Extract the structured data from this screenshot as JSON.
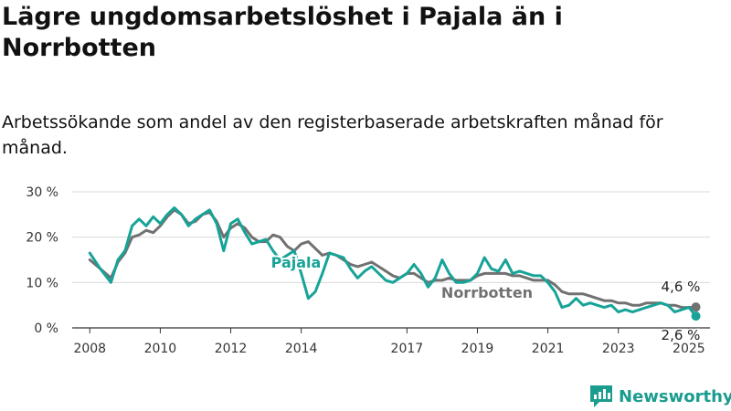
{
  "title": "Lägre ungdomsarbetslöshet i Pajala än i Norrbotten",
  "subtitle": "Arbetssökande som andel av den registerbaserade arbetskraften månad för månad.",
  "brand": {
    "name": "Newsworthy",
    "color": "#1a9c8f"
  },
  "chart_data": {
    "type": "line",
    "title": "Lägre ungdomsarbetslöshet i Pajala än i Norrbotten",
    "subtitle": "Arbetssökande som andel av den registerbaserade arbetskraften månad för månad.",
    "ylim": [
      0,
      30
    ],
    "xlim": [
      2007.5,
      2025.6
    ],
    "yticks": [
      0,
      10,
      20,
      30
    ],
    "ytick_labels": [
      "0 %",
      "10 %",
      "20 %",
      "30 %"
    ],
    "xticks": [
      2008,
      2010,
      2012,
      2014,
      2017,
      2019,
      2021,
      2023,
      2025
    ],
    "xtick_labels": [
      "2008",
      "2010",
      "2012",
      "2014",
      "2017",
      "2019",
      "2021",
      "2023",
      "2025"
    ],
    "grid": true,
    "series": [
      {
        "name": "Pajala",
        "color": "#17a398",
        "label": "Pajala",
        "end_label": "2,6 %",
        "x": [
          2008.0,
          2008.3,
          2008.6,
          2008.8,
          2009.0,
          2009.2,
          2009.4,
          2009.6,
          2009.8,
          2010.0,
          2010.2,
          2010.4,
          2010.6,
          2010.8,
          2011.0,
          2011.2,
          2011.4,
          2011.6,
          2011.8,
          2012.0,
          2012.2,
          2012.4,
          2012.6,
          2012.8,
          2013.0,
          2013.2,
          2013.4,
          2013.6,
          2013.8,
          2014.0,
          2014.2,
          2014.4,
          2014.6,
          2014.8,
          2015.0,
          2015.2,
          2015.4,
          2015.6,
          2015.8,
          2016.0,
          2016.2,
          2016.4,
          2016.6,
          2016.8,
          2017.0,
          2017.2,
          2017.4,
          2017.6,
          2017.8,
          2018.0,
          2018.2,
          2018.4,
          2018.6,
          2018.8,
          2019.0,
          2019.2,
          2019.4,
          2019.6,
          2019.8,
          2020.0,
          2020.2,
          2020.4,
          2020.6,
          2020.8,
          2021.0,
          2021.2,
          2021.4,
          2021.6,
          2021.8,
          2022.0,
          2022.2,
          2022.4,
          2022.6,
          2022.8,
          2023.0,
          2023.2,
          2023.4,
          2023.6,
          2023.8,
          2024.0,
          2024.2,
          2024.4,
          2024.6,
          2024.8,
          2025.0,
          2025.2
        ],
        "values": [
          16.5,
          13.0,
          10.0,
          15.0,
          17.0,
          22.5,
          24.0,
          22.5,
          24.5,
          23.0,
          25.0,
          26.5,
          25.0,
          22.5,
          24.0,
          25.0,
          26.0,
          23.0,
          17.0,
          23.0,
          24.0,
          21.0,
          18.5,
          19.0,
          19.5,
          17.0,
          15.0,
          16.0,
          17.0,
          12.0,
          6.5,
          8.0,
          12.0,
          16.5,
          16.0,
          15.5,
          13.0,
          11.0,
          12.5,
          13.5,
          12.0,
          10.5,
          10.0,
          11.0,
          12.0,
          14.0,
          12.0,
          9.0,
          11.0,
          15.0,
          12.0,
          10.0,
          10.0,
          10.5,
          12.0,
          15.5,
          13.0,
          12.5,
          15.0,
          12.0,
          12.5,
          12.0,
          11.5,
          11.5,
          10.0,
          8.0,
          4.5,
          5.0,
          6.5,
          5.0,
          5.5,
          5.0,
          4.5,
          5.0,
          3.5,
          4.0,
          3.5,
          4.0,
          4.5,
          5.0,
          5.5,
          5.0,
          3.5,
          4.0,
          4.5,
          2.6
        ]
      },
      {
        "name": "Norrbotten",
        "color": "#717171",
        "label": "Norrbotten",
        "end_label": "4,6 %",
        "x": [
          2008.0,
          2008.3,
          2008.6,
          2008.8,
          2009.0,
          2009.2,
          2009.4,
          2009.6,
          2009.8,
          2010.0,
          2010.2,
          2010.4,
          2010.6,
          2010.8,
          2011.0,
          2011.2,
          2011.4,
          2011.6,
          2011.8,
          2012.0,
          2012.2,
          2012.4,
          2012.6,
          2012.8,
          2013.0,
          2013.2,
          2013.4,
          2013.6,
          2013.8,
          2014.0,
          2014.2,
          2014.4,
          2014.6,
          2014.8,
          2015.0,
          2015.2,
          2015.4,
          2015.6,
          2015.8,
          2016.0,
          2016.2,
          2016.4,
          2016.6,
          2016.8,
          2017.0,
          2017.2,
          2017.4,
          2017.6,
          2017.8,
          2018.0,
          2018.2,
          2018.4,
          2018.6,
          2018.8,
          2019.0,
          2019.2,
          2019.4,
          2019.6,
          2019.8,
          2020.0,
          2020.2,
          2020.4,
          2020.6,
          2020.8,
          2021.0,
          2021.2,
          2021.4,
          2021.6,
          2021.8,
          2022.0,
          2022.2,
          2022.4,
          2022.6,
          2022.8,
          2023.0,
          2023.2,
          2023.4,
          2023.6,
          2023.8,
          2024.0,
          2024.2,
          2024.4,
          2024.6,
          2024.8,
          2025.0,
          2025.2
        ],
        "values": [
          15.0,
          13.0,
          11.0,
          14.5,
          16.5,
          20.0,
          20.5,
          21.5,
          21.0,
          22.5,
          24.5,
          26.0,
          25.0,
          23.0,
          23.5,
          25.0,
          25.5,
          23.5,
          20.0,
          22.0,
          23.0,
          22.0,
          20.0,
          19.0,
          19.0,
          20.5,
          20.0,
          18.0,
          17.0,
          18.5,
          19.0,
          17.5,
          16.0,
          16.5,
          16.0,
          15.0,
          14.0,
          13.5,
          14.0,
          14.5,
          13.5,
          12.5,
          11.5,
          11.0,
          12.0,
          12.0,
          11.0,
          10.0,
          10.5,
          10.5,
          11.0,
          10.5,
          10.5,
          10.5,
          11.5,
          12.0,
          12.0,
          12.0,
          12.0,
          11.5,
          11.5,
          11.0,
          10.5,
          10.5,
          10.5,
          9.5,
          8.0,
          7.5,
          7.5,
          7.5,
          7.0,
          6.5,
          6.0,
          6.0,
          5.5,
          5.5,
          5.0,
          5.0,
          5.5,
          5.5,
          5.5,
          5.0,
          5.0,
          4.5,
          4.5,
          4.6
        ]
      }
    ]
  }
}
